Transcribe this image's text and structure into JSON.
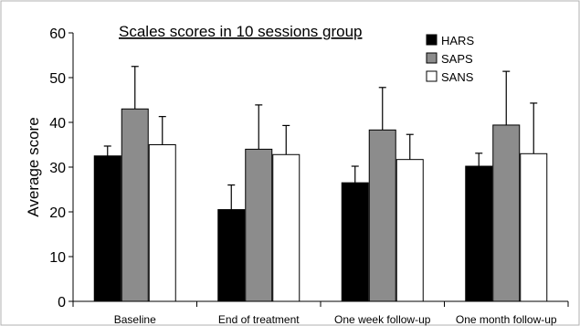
{
  "chart_data": {
    "type": "bar",
    "title": "Scales scores in 10 sessions group",
    "xlabel": "",
    "ylabel": "Average score",
    "ylim": [
      0,
      60
    ],
    "yticks": [
      "0",
      "10",
      "20",
      "30",
      "40",
      "50",
      "60"
    ],
    "categories": [
      "Baseline",
      "End of treatment",
      "One week follow-up",
      "One month follow-up"
    ],
    "grid": false,
    "legend_position": "top-right",
    "series": [
      {
        "name": "HARS",
        "color": "#000000",
        "values": [
          32.5,
          20.5,
          26.5,
          30.2
        ],
        "error": [
          2.2,
          5.5,
          3.7,
          2.9
        ]
      },
      {
        "name": "SAPS",
        "color": "#8c8c8c",
        "values": [
          43.0,
          34.0,
          38.3,
          39.4
        ],
        "error": [
          9.5,
          9.9,
          9.5,
          12.0
        ]
      },
      {
        "name": "SANS",
        "color": "#ffffff",
        "values": [
          35.0,
          32.8,
          31.7,
          33.0
        ],
        "error": [
          6.3,
          6.5,
          5.6,
          11.3
        ]
      }
    ]
  }
}
